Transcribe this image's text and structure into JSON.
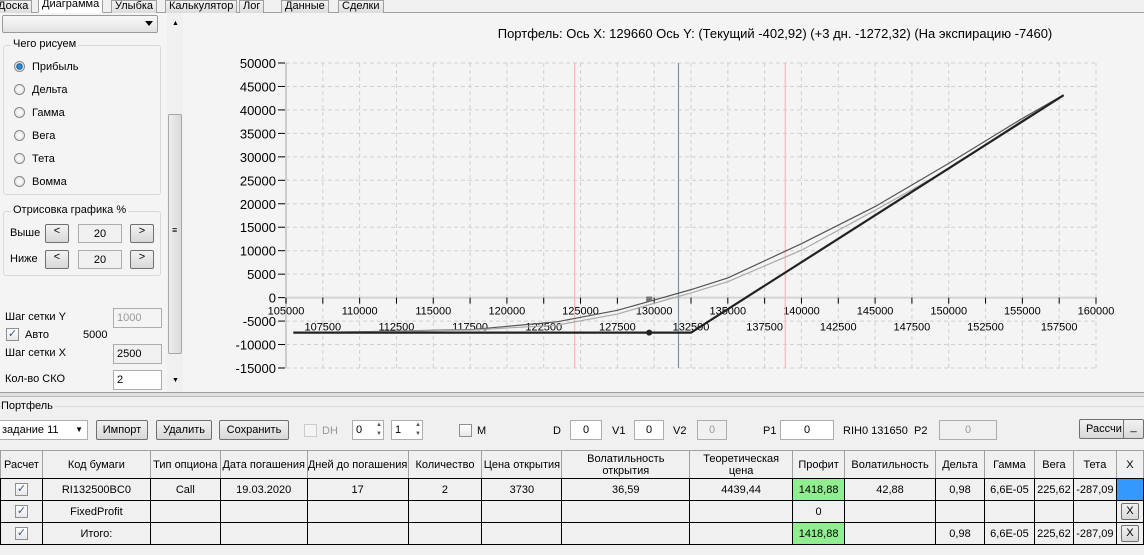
{
  "tabs": [
    "Доска",
    "Диаграмма",
    "Улыбка",
    "Калькулятор",
    "Лог",
    "Данные",
    "Сделки"
  ],
  "active_tab": "Диаграмма",
  "left": {
    "combo_value": "",
    "draw_group": "Чего рисуем",
    "radios": [
      "Прибыль",
      "Дельта",
      "Гамма",
      "Вега",
      "Тета",
      "Вомма"
    ],
    "selected": "Прибыль",
    "render_group": "Отрисовка графика %",
    "above_label": "Выше",
    "above_value": "20",
    "below_label": "Ниже",
    "below_value": "20",
    "prev": "<",
    "next": ">",
    "grid_y_label": "Шаг сетки Y",
    "grid_y_value": "1000",
    "auto_label": "Авто",
    "auto_checked": true,
    "auto_value": "5000",
    "grid_x_label": "Шаг сетки X",
    "grid_x_value": "2500",
    "sko_label": "Кол-во СКО",
    "sko_value": "2"
  },
  "chart_data": {
    "type": "line",
    "title": "Портфель: Ось X: 129660 Ось Y:  (Текущий -402,92)  (+3 дн. -1272,32)  (На экспирацию -7460)",
    "xlim": [
      105000,
      160000
    ],
    "ylim": [
      -15000,
      50000
    ],
    "x_ticks_major": [
      105000,
      110000,
      115000,
      120000,
      125000,
      130000,
      135000,
      140000,
      145000,
      150000,
      155000,
      160000
    ],
    "x_ticks_minor": [
      107500,
      112500,
      117500,
      122500,
      127500,
      132500,
      137500,
      142500,
      147500,
      152500,
      157500
    ],
    "y_ticks": [
      50000,
      45000,
      40000,
      35000,
      30000,
      25000,
      20000,
      15000,
      10000,
      5000,
      0,
      -5000,
      -10000,
      -15000
    ],
    "grid": true,
    "series": [
      {
        "key": "current",
        "color": "#555555",
        "x": [
          105500,
          110000,
          117700,
          123400,
          127500,
          130000,
          132500,
          135000,
          140000,
          145000,
          150000,
          155000,
          157800
        ],
        "y": [
          -7440,
          -7290,
          -6780,
          -5160,
          -2700,
          -530,
          1700,
          4200,
          11500,
          19400,
          28600,
          38200,
          43200
        ]
      },
      {
        "key": "plus3",
        "color": "#aaaaaa",
        "x": [
          105500,
          110000,
          117700,
          123400,
          127500,
          130000,
          132500,
          135000,
          140000,
          145000,
          150000,
          155000,
          157800
        ],
        "y": [
          -7450,
          -7330,
          -6900,
          -5860,
          -3500,
          -1200,
          1000,
          3400,
          10100,
          18600,
          27400,
          37800,
          43150
        ]
      },
      {
        "key": "expiry",
        "color": "#222222",
        "x": [
          105500,
          132500,
          157800
        ],
        "y": [
          -7460,
          -7460,
          43140
        ]
      }
    ],
    "cursor": {
      "x": 129660,
      "current": -402.92,
      "plus3": -1272.32,
      "expiry": -7460
    },
    "vlines": [
      {
        "x": 131650,
        "color": "#8090a8"
      },
      {
        "x": 124600,
        "color": "#f4b8c0"
      },
      {
        "x": 138900,
        "color": "#f4b8c0"
      }
    ]
  },
  "portfolio": {
    "group": "Портфель",
    "select_value": "задание 11",
    "import": "Импорт",
    "delete": "Удалить",
    "save": "Сохранить",
    "dh_label": "DH",
    "spin1": "0",
    "spin2": "1",
    "m_label": "M",
    "d_label": "D",
    "d_value": "0",
    "v1_label": "V1",
    "v1_value": "0",
    "v2_label": "V2",
    "v2_value": "0",
    "p1_label": "P1",
    "p1_value": "0",
    "ticker": "RIH0 131650",
    "p2_label": "P2",
    "p2_value": "0",
    "calc": "Рассчи",
    "min": "_",
    "columns": [
      "Расчет",
      "Код бумаги",
      "Тип опциона",
      "Дата погашения",
      "Дней до погашения",
      "Количество",
      "Цена открытия",
      "Волатильность открытия",
      "Теоретическая цена",
      "Профит",
      "Волатильность",
      "Дельта",
      "Гамма",
      "Вега",
      "Тета",
      "X"
    ],
    "rows": [
      [
        "RI132500BC0",
        "Call",
        "19.03.2020",
        "17",
        "2",
        "3730",
        "36,59",
        "4439,44",
        "1418,88",
        "42,88",
        "0,98",
        "6,6E-05",
        "225,62",
        "-287,09"
      ],
      [
        "FixedProfit",
        "",
        "",
        "",
        "",
        "",
        "",
        "",
        "0",
        "",
        "",
        "",
        "",
        ""
      ],
      [
        "Итого:",
        "",
        "",
        "",
        "",
        "",
        "",
        "",
        "1418,88",
        "",
        "0,98",
        "6,6E-05",
        "225,62",
        "-287,09"
      ]
    ],
    "x_label": "X",
    "profit_color": "#90ee90"
  }
}
